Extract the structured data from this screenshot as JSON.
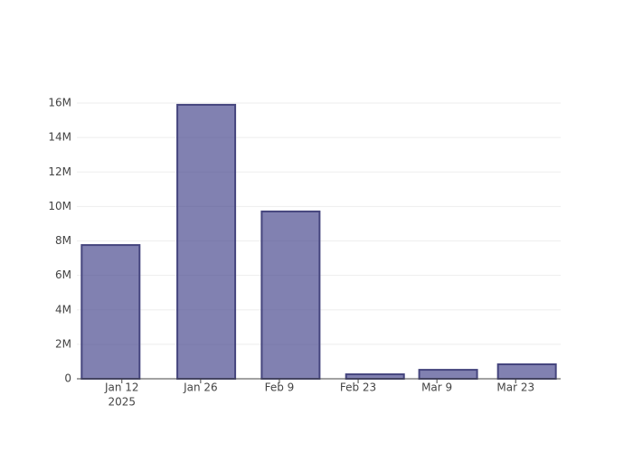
{
  "chart_data": {
    "type": "bar",
    "x": [
      "2025-01-10",
      "2025-01-27",
      "2025-02-11",
      "2025-02-26",
      "2025-03-11",
      "2025-03-25"
    ],
    "values": [
      7760000,
      15900000,
      9710000,
      260000,
      520000,
      840000
    ],
    "color": "rgba(70,70,140,0.68)",
    "edge_color": "#45457e",
    "xlim": [
      "2025-01-04",
      "2025-03-31"
    ],
    "xticks": [
      {
        "value": "2025-01-12",
        "label": "Jan 12"
      },
      {
        "value": "2025-01-26",
        "label": "Jan 26"
      },
      {
        "value": "2025-02-09",
        "label": "Feb 9"
      },
      {
        "value": "2025-02-23",
        "label": "Feb 23"
      },
      {
        "value": "2025-03-09",
        "label": "Mar 9"
      },
      {
        "value": "2025-03-23",
        "label": "Mar 23"
      }
    ],
    "x_year_label": "2025",
    "ylim": [
      0,
      16000000
    ],
    "yticks": [
      0,
      {
        "value": 2000000,
        "label": "2M"
      },
      {
        "value": 4000000,
        "label": "4M"
      },
      {
        "value": 6000000,
        "label": "6M"
      },
      {
        "value": 8000000,
        "label": "8M"
      },
      {
        "value": 10000000,
        "label": "10M"
      },
      {
        "value": 12000000,
        "label": "12M"
      },
      {
        "value": 14000000,
        "label": "14M"
      },
      {
        "value": 16000000,
        "label": "16M"
      }
    ],
    "grid": true
  }
}
